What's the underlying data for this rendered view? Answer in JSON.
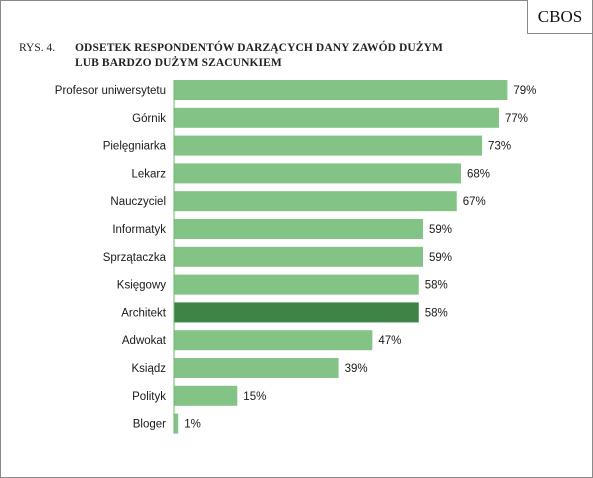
{
  "logo": "CBOS",
  "figure_number": "RYS. 4.",
  "title_line1": "ODSETEK RESPONDENTÓW DARZĄCYCH DANY ZAWÓD DUŻYM",
  "title_line2": "LUB BARDZO DUŻYM SZACUNKIEM",
  "colors": {
    "bar": "#84c386",
    "highlight_bar": "#3d8446",
    "axis": "#6fb472",
    "text": "#1a1a1a"
  },
  "chart_data": {
    "type": "bar",
    "orientation": "horizontal",
    "title": "ODSETEK RESPONDENTÓW DARZĄCYCH DANY ZAWÓD DUŻYM LUB BARDZO DUŻYM SZACUNKIEM",
    "categories": [
      "Profesor uniwersytetu",
      "Górnik",
      "Pielęgniarka",
      "Lekarz",
      "Nauczyciel",
      "Informatyk",
      "Sprzątaczka",
      "Księgowy",
      "Architekt",
      "Adwokat",
      "Ksiądz",
      "Polityk",
      "Bloger"
    ],
    "values": [
      79,
      77,
      73,
      68,
      67,
      59,
      59,
      58,
      58,
      47,
      39,
      15,
      1
    ],
    "value_labels": [
      "79%",
      "77%",
      "73%",
      "68%",
      "67%",
      "59%",
      "59%",
      "58%",
      "58%",
      "47%",
      "39%",
      "15%",
      "1%"
    ],
    "highlighted_category": "Architekt",
    "xlim": [
      0,
      100
    ],
    "grid": false,
    "legend": "none"
  }
}
